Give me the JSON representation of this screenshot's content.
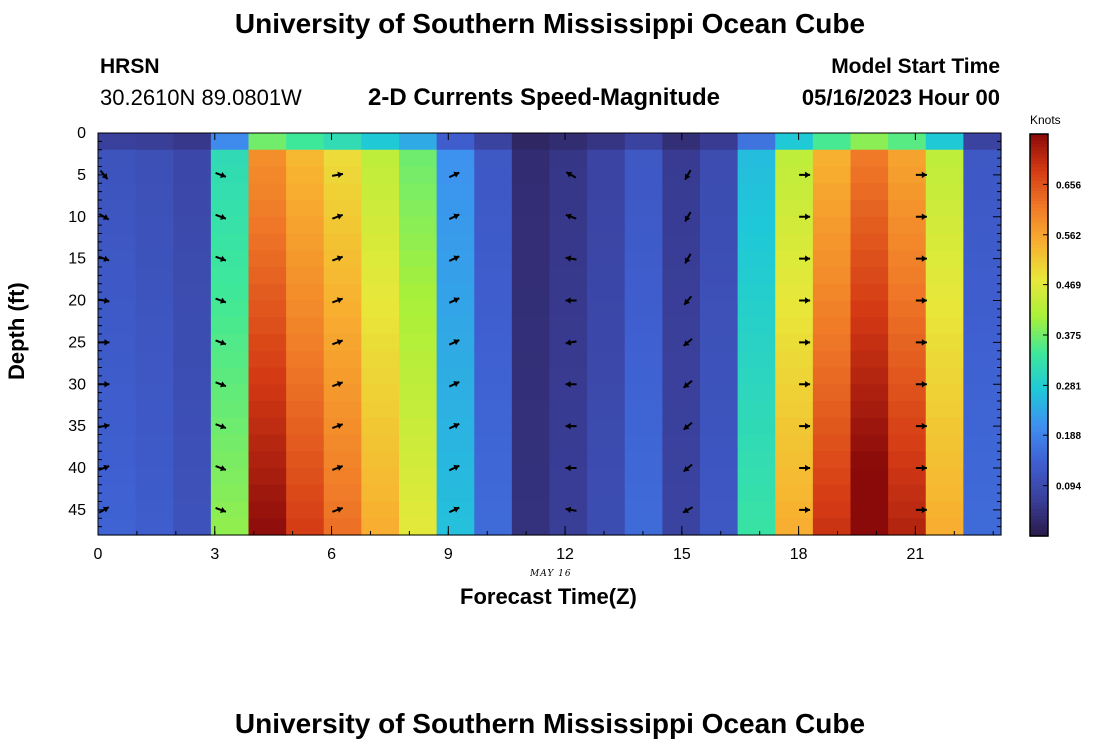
{
  "header": {
    "title": "University of Southern Mississippi Ocean Cube",
    "station": "HRSN",
    "coords": "30.2610N  89.0801W",
    "subtitle": "2-D Currents Speed-Magnitude",
    "model_start_label": "Model Start Time",
    "model_start_value": "05/16/2023 Hour 00"
  },
  "footer": {
    "title": "University of Southern Mississippi Ocean Cube"
  },
  "colors": {
    "scale": [
      "#2a1a4a",
      "#3a3f9a",
      "#3f5fd0",
      "#3f8ff0",
      "#1fc8d8",
      "#3ee89a",
      "#a8f03a",
      "#e8e83a",
      "#f8b030",
      "#f07a28",
      "#d43a14",
      "#8a0a0a"
    ],
    "arrow": "#000000"
  },
  "chart_data": {
    "type": "heatmap",
    "title": "2-D Currents Speed-Magnitude",
    "xlabel": "Forecast Time(Z)",
    "ylabel": "Depth (ft)",
    "x_date_label": "MAY 16",
    "xlim": [
      0,
      23.2
    ],
    "ylim": [
      0,
      48
    ],
    "xticks": [
      0,
      3,
      6,
      9,
      12,
      15,
      18,
      21
    ],
    "yticks": [
      0,
      5,
      10,
      15,
      20,
      25,
      30,
      35,
      40,
      45
    ],
    "colorbar": {
      "label": "Knots",
      "ticks": [
        0.656,
        0.562,
        0.469,
        0.375,
        0.281,
        0.188,
        0.094
      ],
      "range": [
        0,
        0.75
      ]
    },
    "hour_speed_knots": [
      0.13,
      0.12,
      0.1,
      0.36,
      0.68,
      0.62,
      0.57,
      0.5,
      0.43,
      0.24,
      0.14,
      0.04,
      0.06,
      0.09,
      0.14,
      0.07,
      0.11,
      0.3,
      0.5,
      0.63,
      0.71,
      0.65,
      0.5,
      0.14
    ],
    "vector_hours": [
      0,
      3,
      6,
      9,
      12,
      15,
      18,
      21
    ],
    "vector_depths": [
      5,
      10,
      15,
      20,
      25,
      30,
      35,
      40,
      45
    ],
    "vector_direction_deg": [
      60,
      110,
      70,
      65,
      300,
      210,
      90,
      90
    ],
    "vector_dir_variation": [
      [
        80,
        60,
        50,
        40,
        30,
        30,
        20,
        10,
        0
      ],
      [
        0,
        0,
        0,
        0,
        0,
        0,
        0,
        0,
        0
      ],
      [
        10,
        0,
        0,
        0,
        0,
        0,
        0,
        0,
        0
      ],
      [
        0,
        0,
        0,
        0,
        0,
        0,
        0,
        0,
        0
      ],
      [
        0,
        -10,
        -20,
        -30,
        -40,
        -30,
        -30,
        -30,
        -20
      ],
      [
        0,
        0,
        0,
        10,
        20,
        20,
        20,
        20,
        30
      ],
      [
        0,
        0,
        0,
        0,
        0,
        0,
        0,
        0,
        0
      ],
      [
        0,
        0,
        0,
        0,
        0,
        0,
        0,
        0,
        0
      ]
    ]
  }
}
